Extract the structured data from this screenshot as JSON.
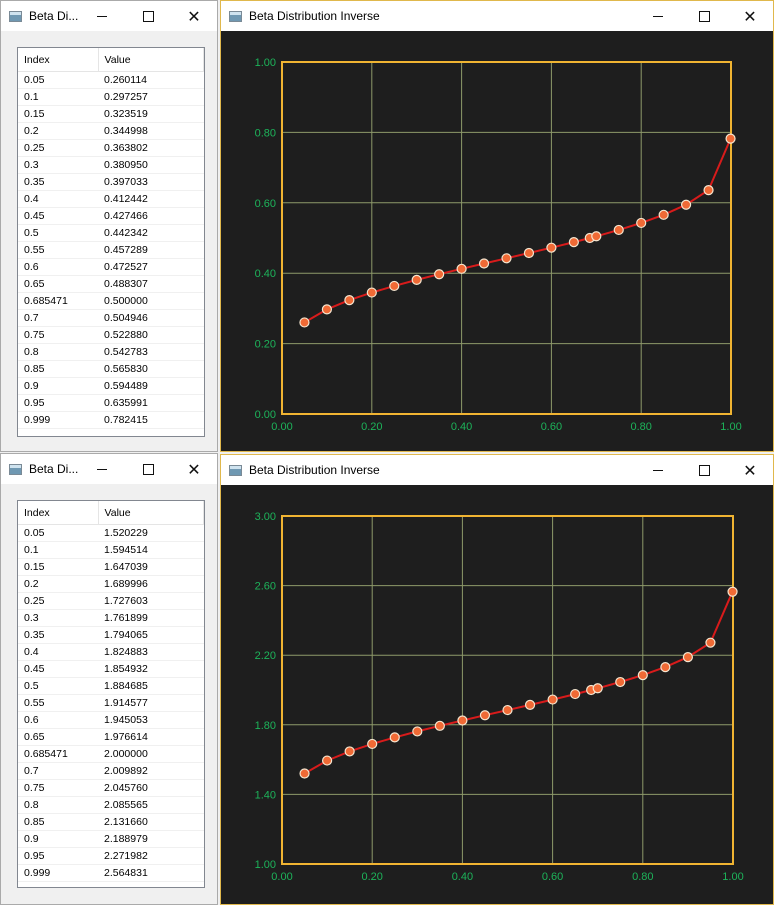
{
  "windows": [
    {
      "small_title": "Beta Di...",
      "big_title": "Beta Distribution Inverse",
      "columns": [
        "Index",
        "Value"
      ],
      "rows": [
        [
          "0.05",
          "0.260114"
        ],
        [
          "0.1",
          "0.297257"
        ],
        [
          "0.15",
          "0.323519"
        ],
        [
          "0.2",
          "0.344998"
        ],
        [
          "0.25",
          "0.363802"
        ],
        [
          "0.3",
          "0.380950"
        ],
        [
          "0.35",
          "0.397033"
        ],
        [
          "0.4",
          "0.412442"
        ],
        [
          "0.45",
          "0.427466"
        ],
        [
          "0.5",
          "0.442342"
        ],
        [
          "0.55",
          "0.457289"
        ],
        [
          "0.6",
          "0.472527"
        ],
        [
          "0.65",
          "0.488307"
        ],
        [
          "0.685471",
          "0.500000"
        ],
        [
          "0.7",
          "0.504946"
        ],
        [
          "0.75",
          "0.522880"
        ],
        [
          "0.8",
          "0.542783"
        ],
        [
          "0.85",
          "0.565830"
        ],
        [
          "0.9",
          "0.594489"
        ],
        [
          "0.95",
          "0.635991"
        ],
        [
          "0.999",
          "0.782415"
        ]
      ]
    },
    {
      "small_title": "Beta Di...",
      "big_title": "Beta Distribution Inverse",
      "columns": [
        "Index",
        "Value"
      ],
      "rows": [
        [
          "0.05",
          "1.520229"
        ],
        [
          "0.1",
          "1.594514"
        ],
        [
          "0.15",
          "1.647039"
        ],
        [
          "0.2",
          "1.689996"
        ],
        [
          "0.25",
          "1.727603"
        ],
        [
          "0.3",
          "1.761899"
        ],
        [
          "0.35",
          "1.794065"
        ],
        [
          "0.4",
          "1.824883"
        ],
        [
          "0.45",
          "1.854932"
        ],
        [
          "0.5",
          "1.884685"
        ],
        [
          "0.55",
          "1.914577"
        ],
        [
          "0.6",
          "1.945053"
        ],
        [
          "0.65",
          "1.976614"
        ],
        [
          "0.685471",
          "2.000000"
        ],
        [
          "0.7",
          "2.009892"
        ],
        [
          "0.75",
          "2.045760"
        ],
        [
          "0.8",
          "2.085565"
        ],
        [
          "0.85",
          "2.131660"
        ],
        [
          "0.9",
          "2.188979"
        ],
        [
          "0.95",
          "2.271982"
        ],
        [
          "0.999",
          "2.564831"
        ]
      ]
    }
  ],
  "colors": {
    "plot_background": "#1e1e1e",
    "frame": "#f0b432",
    "grid": "#8e9a6a",
    "tick_text": "#1db35a",
    "line": "#d81b1b",
    "marker_fill": "#f06a35",
    "marker_stroke": "#f5e6d0"
  },
  "chart_data": [
    {
      "type": "line",
      "title": "",
      "xlabel": "",
      "ylabel": "",
      "xlim": [
        0,
        1
      ],
      "ylim": [
        0,
        1
      ],
      "xticks": [
        "0.00",
        "0.20",
        "0.40",
        "0.60",
        "0.80",
        "1.00"
      ],
      "yticks": [
        "0.00",
        "0.20",
        "0.40",
        "0.60",
        "0.80",
        "1.00"
      ],
      "grid": true,
      "x": [
        0.05,
        0.1,
        0.15,
        0.2,
        0.25,
        0.3,
        0.35,
        0.4,
        0.45,
        0.5,
        0.55,
        0.6,
        0.65,
        0.685471,
        0.7,
        0.75,
        0.8,
        0.85,
        0.9,
        0.95,
        0.999
      ],
      "y": [
        0.260114,
        0.297257,
        0.323519,
        0.344998,
        0.363802,
        0.38095,
        0.397033,
        0.412442,
        0.427466,
        0.442342,
        0.457289,
        0.472527,
        0.488307,
        0.5,
        0.504946,
        0.52288,
        0.542783,
        0.56583,
        0.594489,
        0.635991,
        0.782415
      ]
    },
    {
      "type": "line",
      "title": "",
      "xlabel": "",
      "ylabel": "",
      "xlim": [
        0,
        1
      ],
      "ylim": [
        1,
        3
      ],
      "xticks": [
        "0.00",
        "0.20",
        "0.40",
        "0.60",
        "0.80",
        "1.00"
      ],
      "yticks": [
        "1.00",
        "1.40",
        "1.80",
        "2.20",
        "2.60",
        "3.00"
      ],
      "grid": true,
      "x": [
        0.05,
        0.1,
        0.15,
        0.2,
        0.25,
        0.3,
        0.35,
        0.4,
        0.45,
        0.5,
        0.55,
        0.6,
        0.65,
        0.685471,
        0.7,
        0.75,
        0.8,
        0.85,
        0.9,
        0.95,
        0.999
      ],
      "y": [
        1.520229,
        1.594514,
        1.647039,
        1.689996,
        1.727603,
        1.761899,
        1.794065,
        1.824883,
        1.854932,
        1.884685,
        1.914577,
        1.945053,
        1.976614,
        2.0,
        2.009892,
        2.04576,
        2.085565,
        2.13166,
        2.188979,
        2.271982,
        2.564831
      ]
    }
  ]
}
